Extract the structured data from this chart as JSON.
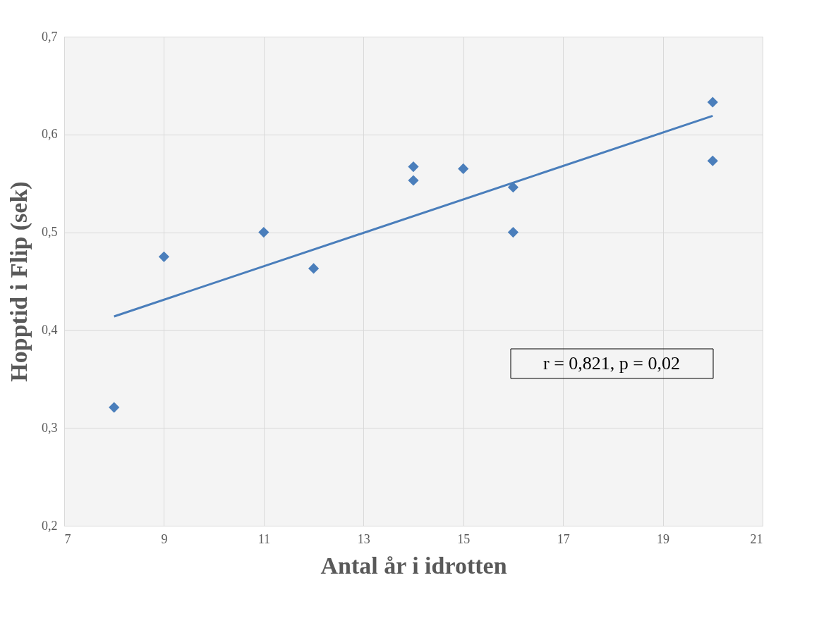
{
  "chart_data": {
    "type": "scatter",
    "xlabel": "Antal år i idrotten",
    "ylabel": "Hopptid i Flip (sek)",
    "xlim": [
      7,
      21
    ],
    "xticks": [
      7,
      9,
      11,
      13,
      15,
      17,
      19,
      21
    ],
    "ylim": [
      0.2,
      0.7
    ],
    "yticks": [
      {
        "value": 0.2,
        "label": "0,2"
      },
      {
        "value": 0.3,
        "label": "0,3"
      },
      {
        "value": 0.4,
        "label": "0,4"
      },
      {
        "value": 0.5,
        "label": "0,5"
      },
      {
        "value": 0.6,
        "label": "0,6"
      },
      {
        "value": 0.7,
        "label": "0,7"
      }
    ],
    "grid": true,
    "series": [
      {
        "type": "scatter",
        "marker": "diamond",
        "color": "#4a7ebb",
        "x": [
          8,
          9,
          11,
          12,
          14,
          14,
          15,
          16,
          16,
          20,
          20
        ],
        "values": [
          0.321,
          0.475,
          0.5,
          0.463,
          0.567,
          0.553,
          0.565,
          0.546,
          0.5,
          0.633,
          0.573
        ]
      },
      {
        "type": "line",
        "line_style": "solid",
        "color": "#4a7ebb",
        "x": [
          8,
          20
        ],
        "values": [
          0.414,
          0.619
        ]
      }
    ],
    "annotations": [
      "r = 0,821, p = 0,02"
    ]
  }
}
